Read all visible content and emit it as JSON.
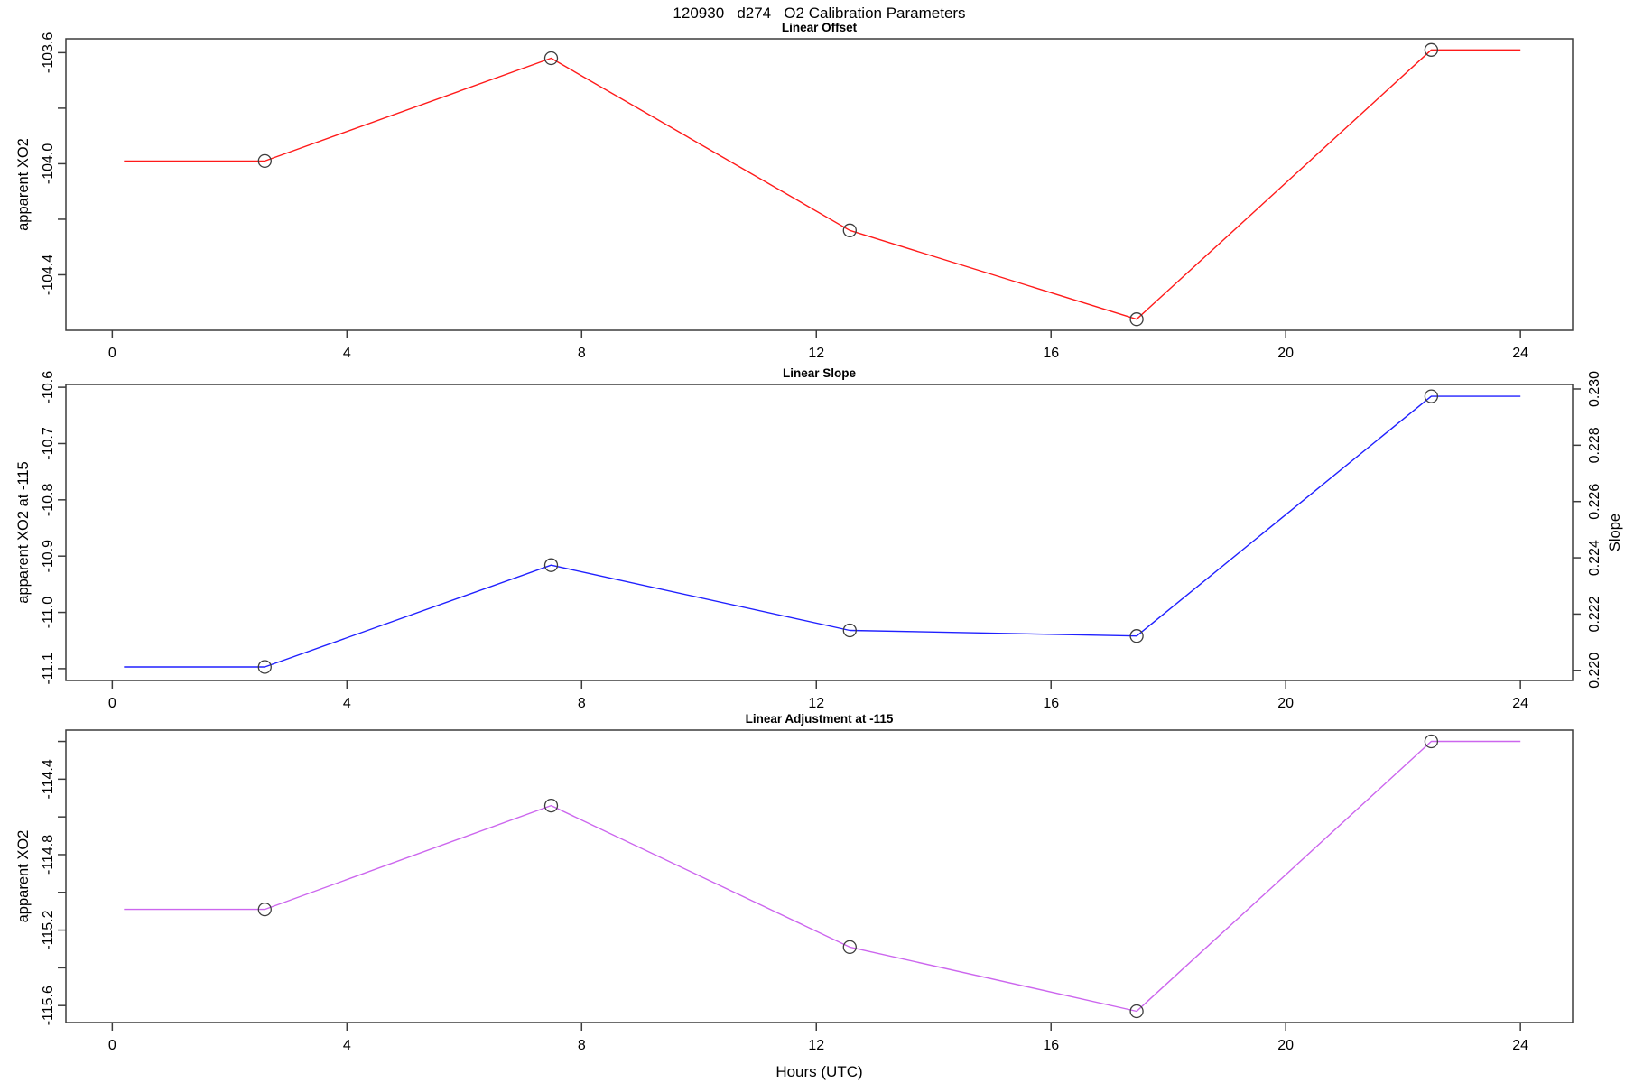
{
  "figure_title": "120930   d274   O2 Calibration Parameters",
  "chart_data": [
    {
      "type": "line",
      "title": "Linear Offset",
      "color": "#ff1a1a",
      "marker_color": "#3d3d3d",
      "ylabel": "apparent XO2",
      "xlim": [
        -0.79,
        24.89
      ],
      "ylim": [
        -104.6,
        -103.55
      ],
      "xticks": [
        {
          "v": 0,
          "label": "0"
        },
        {
          "v": 4,
          "label": "4"
        },
        {
          "v": 8,
          "label": "8"
        },
        {
          "v": 12,
          "label": "12"
        },
        {
          "v": 16,
          "label": "16"
        },
        {
          "v": 20,
          "label": "20"
        },
        {
          "v": 24,
          "label": "24"
        }
      ],
      "yticks": [
        {
          "v": -104.4,
          "label": "-104.4"
        },
        {
          "v": -104.2,
          "label": ""
        },
        {
          "v": -104.0,
          "label": "-104.0"
        },
        {
          "v": -103.8,
          "label": ""
        },
        {
          "v": -103.6,
          "label": "-103.6"
        }
      ],
      "line": {
        "x": [
          0.2,
          2.6,
          7.48,
          12.57,
          17.46,
          22.48,
          24
        ],
        "y": [
          -103.99,
          -103.99,
          -103.62,
          -104.24,
          -104.56,
          -103.59,
          -103.59
        ]
      },
      "points": {
        "x": [
          2.6,
          7.48,
          12.57,
          17.46,
          22.48
        ],
        "y": [
          -103.99,
          -103.62,
          -104.24,
          -104.56,
          -103.59
        ]
      }
    },
    {
      "type": "line",
      "title": "Linear Slope",
      "color": "#2020ff",
      "marker_color": "#3d3d3d",
      "ylabel": "apparent XO2 at -115",
      "y2label": "Slope",
      "xlim": [
        -0.79,
        24.89
      ],
      "ylim": [
        -11.121,
        -10.595
      ],
      "xticks": [
        {
          "v": 0,
          "label": "0"
        },
        {
          "v": 4,
          "label": "4"
        },
        {
          "v": 8,
          "label": "8"
        },
        {
          "v": 12,
          "label": "12"
        },
        {
          "v": 16,
          "label": "16"
        },
        {
          "v": 20,
          "label": "20"
        },
        {
          "v": 24,
          "label": "24"
        }
      ],
      "yticks": [
        {
          "v": -11.1,
          "label": "-11.1"
        },
        {
          "v": -11.0,
          "label": "-11.0"
        },
        {
          "v": -10.9,
          "label": "-10.9"
        },
        {
          "v": -10.8,
          "label": "-10.8"
        },
        {
          "v": -10.7,
          "label": "-10.7"
        },
        {
          "v": -10.6,
          "label": "-10.6"
        }
      ],
      "y2ticks": [
        {
          "at": -11.103,
          "label": "0.220"
        },
        {
          "at": -11.003,
          "label": "0.222"
        },
        {
          "at": -10.903,
          "label": "0.224"
        },
        {
          "at": -10.803,
          "label": "0.226"
        },
        {
          "at": -10.703,
          "label": "0.228"
        },
        {
          "at": -10.603,
          "label": "0.230"
        }
      ],
      "line": {
        "x": [
          0.2,
          2.6,
          7.48,
          12.57,
          17.46,
          22.48,
          24
        ],
        "y": [
          -11.097,
          -11.097,
          -10.916,
          -11.032,
          -11.042,
          -10.616,
          -10.616
        ]
      },
      "points": {
        "x": [
          2.6,
          7.48,
          12.57,
          17.46,
          22.48
        ],
        "y": [
          -11.097,
          -10.916,
          -11.032,
          -11.042,
          -10.616
        ]
      }
    },
    {
      "type": "line",
      "title": "Linear Adjustment at -115",
      "color": "#cc66ee",
      "marker_color": "#3d3d3d",
      "ylabel": "apparent XO2",
      "xlabel": "Hours (UTC)",
      "xlim": [
        -0.79,
        24.89
      ],
      "ylim": [
        -115.69,
        -114.14
      ],
      "xticks": [
        {
          "v": 0,
          "label": "0"
        },
        {
          "v": 4,
          "label": "4"
        },
        {
          "v": 8,
          "label": "8"
        },
        {
          "v": 12,
          "label": "12"
        },
        {
          "v": 16,
          "label": "16"
        },
        {
          "v": 20,
          "label": "20"
        },
        {
          "v": 24,
          "label": "24"
        }
      ],
      "yticks": [
        {
          "v": -115.6,
          "label": "-115.6"
        },
        {
          "v": -115.4,
          "label": ""
        },
        {
          "v": -115.2,
          "label": "-115.2"
        },
        {
          "v": -115.0,
          "label": ""
        },
        {
          "v": -114.8,
          "label": "-114.8"
        },
        {
          "v": -114.6,
          "label": ""
        },
        {
          "v": -114.4,
          "label": "-114.4"
        },
        {
          "v": -114.2,
          "label": ""
        }
      ],
      "line": {
        "x": [
          0.2,
          2.6,
          7.48,
          12.57,
          17.46,
          22.48,
          24
        ],
        "y": [
          -115.09,
          -115.09,
          -114.54,
          -115.29,
          -115.63,
          -114.2,
          -114.2
        ]
      },
      "points": {
        "x": [
          2.6,
          7.48,
          12.57,
          17.46,
          22.48
        ],
        "y": [
          -115.09,
          -114.54,
          -115.29,
          -115.63,
          -114.2
        ]
      }
    }
  ]
}
